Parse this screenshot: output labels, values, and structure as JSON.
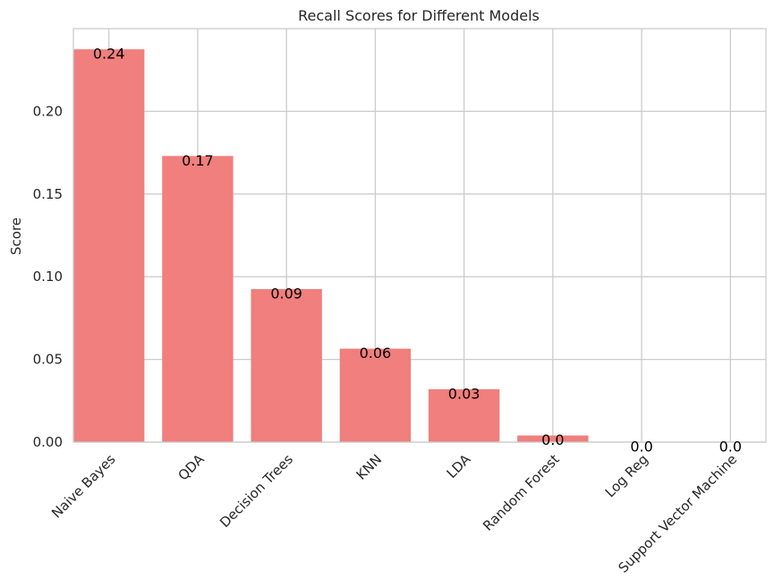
{
  "chart_data": {
    "type": "bar",
    "title": "Recall Scores for Different Models",
    "xlabel": "",
    "ylabel": "Score",
    "categories": [
      "Naive Bayes",
      "QDA",
      "Decision Trees",
      "KNN",
      "LDA",
      "Random Forest",
      "Log Reg",
      "Support Vector Machine"
    ],
    "values": [
      0.2375,
      0.173,
      0.0925,
      0.0565,
      0.032,
      0.004,
      0.0,
      0.0
    ],
    "value_labels": [
      "0.24",
      "0.17",
      "0.09",
      "0.06",
      "0.03",
      "0.0",
      "0.0",
      "0.0"
    ],
    "ylim": [
      0,
      0.25
    ],
    "yticks": [
      0.0,
      0.05,
      0.1,
      0.15,
      0.2
    ],
    "ytick_labels": [
      "0.00",
      "0.05",
      "0.10",
      "0.15",
      "0.20"
    ],
    "grid": true,
    "x_tick_rotation_deg": 45,
    "colors": {
      "bar": "#f07f7d",
      "grid": "#cccccc",
      "axes_edge": "#cccccc",
      "text": "#262626",
      "value_label": "#000000"
    }
  }
}
